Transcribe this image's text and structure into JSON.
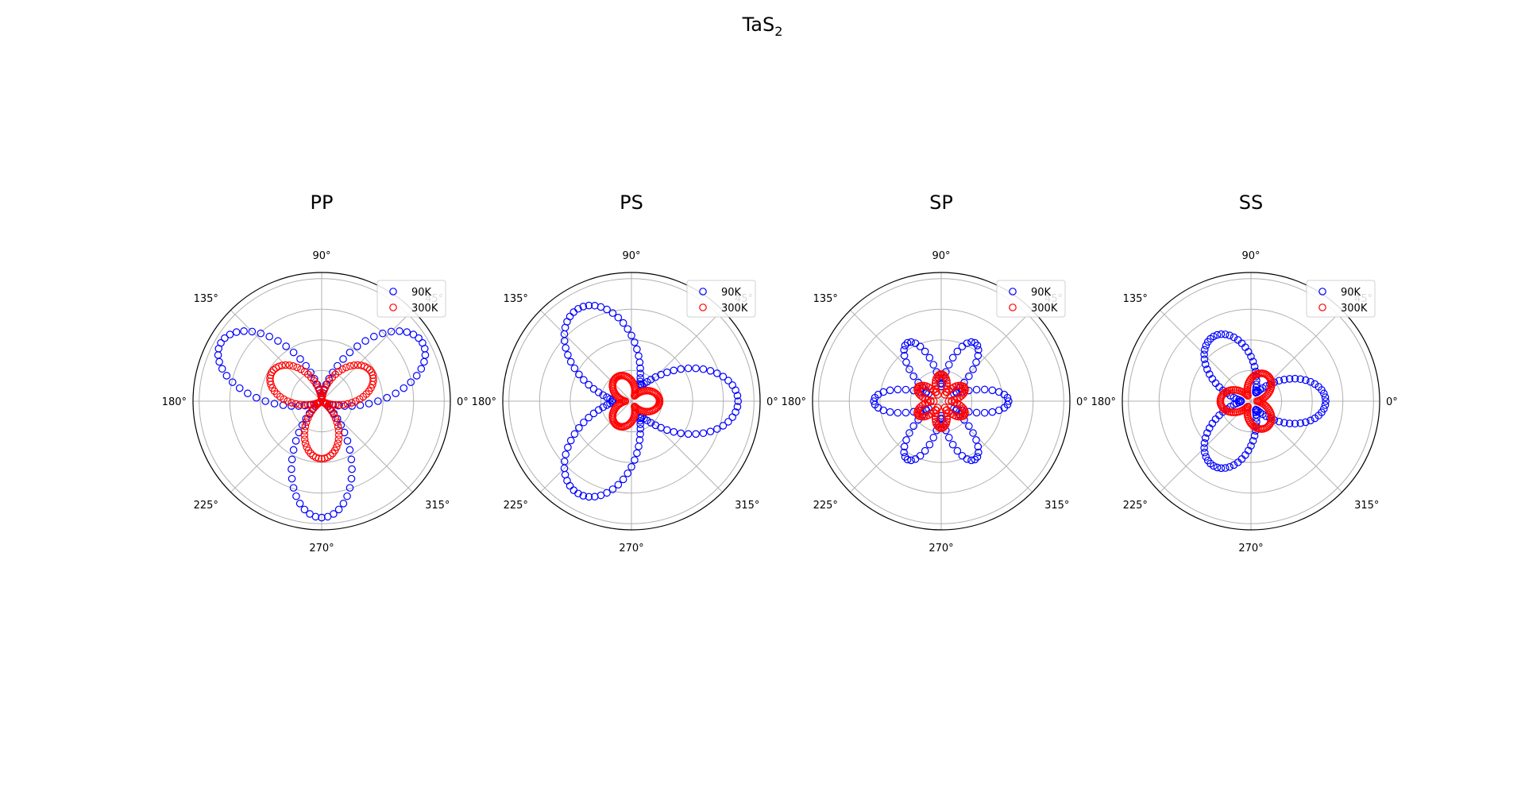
{
  "figure": {
    "suptitle_main": "TaS",
    "suptitle_sub": "2"
  },
  "chart_data": [
    {
      "type": "scatter",
      "projection": "polar",
      "title": "PP",
      "theta_ticks": [
        "0°",
        "45°",
        "90°",
        "135°",
        "180°",
        "225°",
        "270°",
        "315°"
      ],
      "r_ticks": [
        0.25,
        0.5,
        0.75,
        1.0
      ],
      "rlim": [
        0,
        1.05
      ],
      "grid": true,
      "legend": "top-right",
      "colors": {
        "90K": "#0000ff",
        "300K": "#ff0000"
      },
      "series": [
        {
          "name": "90K",
          "color": "#0000ff",
          "lobes": 3,
          "lobe_phase_deg": 30,
          "amplitude": 0.92,
          "base": 0.03,
          "sharpness": 2.2,
          "samples": 120
        },
        {
          "name": "300K",
          "color": "#ff0000",
          "lobes": 3,
          "lobe_phase_deg": 30,
          "amplitude": 0.45,
          "base": 0.02,
          "sharpness": 1.6,
          "samples": 120
        }
      ]
    },
    {
      "type": "scatter",
      "projection": "polar",
      "title": "PS",
      "theta_ticks": [
        "0°",
        "45°",
        "90°",
        "135°",
        "180°",
        "225°",
        "270°",
        "315°"
      ],
      "r_ticks": [
        0.25,
        0.5,
        0.75,
        1.0
      ],
      "rlim": [
        0,
        1.05
      ],
      "grid": true,
      "legend": "top-right",
      "colors": {
        "90K": "#0000ff",
        "300K": "#ff0000"
      },
      "series": [
        {
          "name": "90K",
          "color": "#0000ff",
          "lobes": 3,
          "lobe_phase_deg": 0,
          "amplitude": 0.72,
          "base": 0.15,
          "sharpness": 1.8,
          "samples": 120
        },
        {
          "name": "300K",
          "color": "#ff0000",
          "lobes": 3,
          "lobe_phase_deg": 0,
          "amplitude": 0.18,
          "base": 0.05,
          "sharpness": 1.2,
          "samples": 120
        }
      ]
    },
    {
      "type": "scatter",
      "projection": "polar",
      "title": "SP",
      "theta_ticks": [
        "0°",
        "45°",
        "90°",
        "135°",
        "180°",
        "225°",
        "270°",
        "315°"
      ],
      "r_ticks": [
        0.25,
        0.5,
        0.75,
        1.0
      ],
      "rlim": [
        0,
        1.05
      ],
      "grid": true,
      "legend": "top-right",
      "colors": {
        "90K": "#0000ff",
        "300K": "#ff0000"
      },
      "series": [
        {
          "name": "90K",
          "color": "#0000ff",
          "lobes": 6,
          "lobe_phase_deg": 0,
          "amplitude": 0.43,
          "base": 0.12,
          "sharpness": 1.6,
          "samples": 120
        },
        {
          "name": "300K",
          "color": "#ff0000",
          "lobes": 6,
          "lobe_phase_deg": 30,
          "amplitude": 0.16,
          "base": 0.06,
          "sharpness": 1.0,
          "samples": 120
        }
      ]
    },
    {
      "type": "scatter",
      "projection": "polar",
      "title": "SS",
      "theta_ticks": [
        "0°",
        "45°",
        "90°",
        "135°",
        "180°",
        "225°",
        "270°",
        "315°"
      ],
      "r_ticks": [
        0.25,
        0.5,
        0.75,
        1.0
      ],
      "rlim": [
        0,
        1.05
      ],
      "grid": true,
      "legend": "top-right",
      "colors": {
        "90K": "#0000ff",
        "300K": "#ff0000"
      },
      "series": [
        {
          "name": "90K",
          "color": "#0000ff",
          "lobes": 3,
          "lobe_phase_deg": 0,
          "amplitude": 0.53,
          "base": 0.08,
          "sharpness": 1.8,
          "samples": 120
        },
        {
          "name": "300K",
          "color": "#ff0000",
          "lobes": 3,
          "lobe_phase_deg": 60,
          "amplitude": 0.2,
          "base": 0.05,
          "sharpness": 1.2,
          "samples": 120
        }
      ]
    }
  ]
}
